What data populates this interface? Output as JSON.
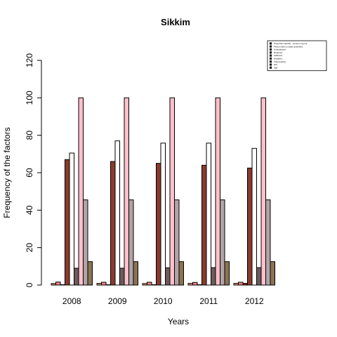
{
  "chart_data": {
    "type": "bar",
    "title": "Sikkim",
    "xlabel": "Years",
    "ylabel": "Frequency of the factors",
    "ylim": [
      0,
      120
    ],
    "yticks": [
      0,
      20,
      40,
      60,
      80,
      100,
      120
    ],
    "categories": [
      "2008",
      "2009",
      "2010",
      "2011",
      "2012"
    ],
    "grid": false,
    "legend_position": "top-right",
    "series": [
      {
        "name": "Proportion identify ...person sng rint",
        "color": "#e9967a",
        "values": [
          0.8,
          0.9,
          0.8,
          0.9,
          0.9
        ]
      },
      {
        "name": "Person with no basic amenities",
        "color": "#f08080",
        "values": [
          1.6,
          1.5,
          1.5,
          1.4,
          1.5
        ]
      },
      {
        "name": "Unemployed",
        "color": "#8b1a1a",
        "values": [
          0.2,
          0.2,
          0.2,
          0.2,
          0.9
        ]
      },
      {
        "name": "Deprived",
        "color": "#8b3a2e",
        "values": [
          67,
          66,
          65,
          64,
          62.5
        ]
      },
      {
        "name": "Sufferers",
        "color": "#ffffff",
        "values": [
          70.5,
          77,
          75.8,
          75.8,
          73
        ]
      },
      {
        "name": "Disabled",
        "color": "#6b5c5c",
        "values": [
          9,
          9,
          9.2,
          9.3,
          9.3
        ]
      },
      {
        "name": "Tuberculosis",
        "color": "#ffc0cb",
        "values": [
          100,
          100,
          100,
          100,
          100
        ]
      },
      {
        "name": "HIV",
        "color": "#b0a4a6",
        "values": [
          45.5,
          45.5,
          45.5,
          45.5,
          45.5
        ]
      },
      {
        "name": "Age",
        "color": "#8b7355",
        "values": [
          12.5,
          12.5,
          12.5,
          12.5,
          12.5
        ]
      }
    ]
  }
}
